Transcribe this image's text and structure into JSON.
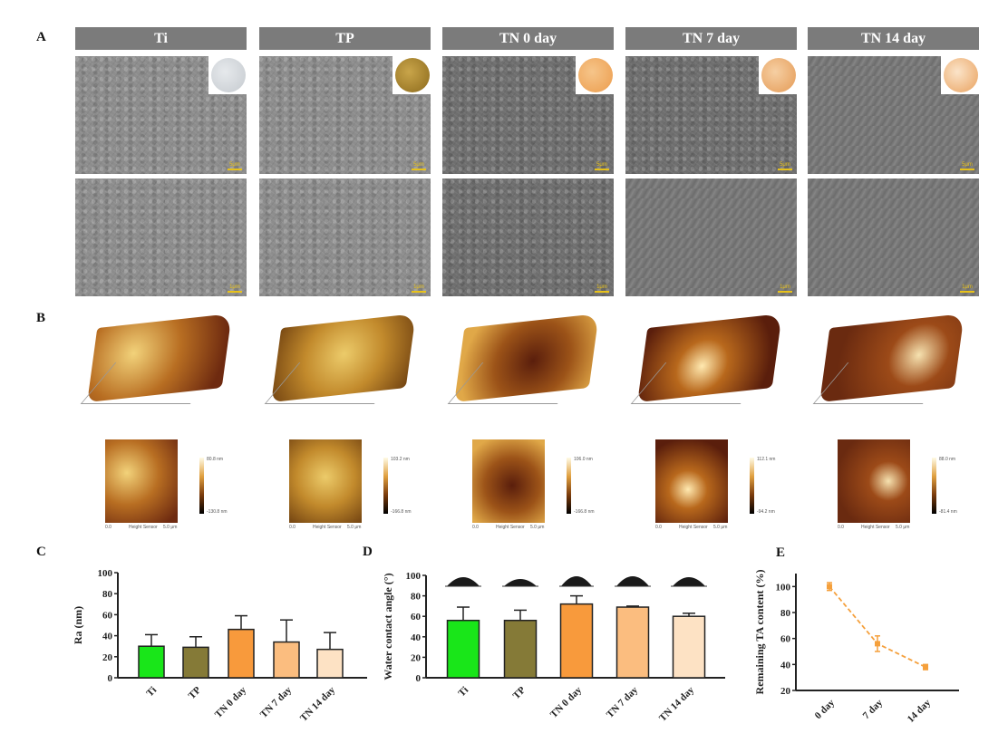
{
  "panels": {
    "a": "A",
    "b": "B",
    "c": "C",
    "d": "D",
    "e": "E"
  },
  "groups": [
    "Ti",
    "TP",
    "TN  0 day",
    "TN  7 day",
    "TN  14 day"
  ],
  "sem": {
    "scale_top": "5μm",
    "scale_bottom": "1μm"
  },
  "afm": {
    "x_label": "Height Sensor",
    "x_start": "0.0",
    "x_end": "5.0 μm",
    "colorbars": [
      {
        "max": "80.8 nm",
        "min": "-130.8 nm"
      },
      {
        "max": "103.2 nm",
        "min": "-166.8 nm"
      },
      {
        "max": "106.0 nm",
        "min": "-166.8 nm"
      },
      {
        "max": "112.1 nm",
        "min": "-94.2 nm"
      },
      {
        "max": "88.0 nm",
        "min": "-81.4 nm"
      }
    ]
  },
  "colors": [
    "#19e619",
    "#857a37",
    "#f89a3c",
    "#fbbd7f",
    "#fde2c4"
  ],
  "chart_data": [
    {
      "type": "bar",
      "title": "C",
      "ylabel": "Ra (nm)",
      "categories": [
        "Ti",
        "TP",
        "TN 0 day",
        "TN 7 day",
        "TN 14 day"
      ],
      "values": [
        30,
        29,
        46,
        34,
        27
      ],
      "errors": [
        11,
        10,
        13,
        21,
        16
      ],
      "ylim": [
        0,
        100
      ],
      "yticks": [
        0,
        20,
        40,
        60,
        80,
        100
      ]
    },
    {
      "type": "bar",
      "title": "D",
      "ylabel": "Water contact angle (°)",
      "categories": [
        "Ti",
        "TP",
        "TN 0 day",
        "TN 7 day",
        "TN 14 day"
      ],
      "values": [
        56,
        56,
        72,
        69,
        60
      ],
      "errors": [
        13,
        10,
        8,
        1,
        3
      ],
      "ylim": [
        0,
        100
      ],
      "yticks": [
        0,
        20,
        40,
        60,
        80,
        100
      ]
    },
    {
      "type": "line",
      "title": "E",
      "ylabel": "Remaining TA content (%)",
      "categories": [
        "0 day",
        "7 day",
        "14 day"
      ],
      "values": [
        100,
        56,
        38
      ],
      "errors": [
        3,
        6,
        2
      ],
      "ylim": [
        20,
        110
      ],
      "yticks": [
        20,
        40,
        60,
        80,
        100
      ],
      "color": "#f5a03c"
    }
  ]
}
